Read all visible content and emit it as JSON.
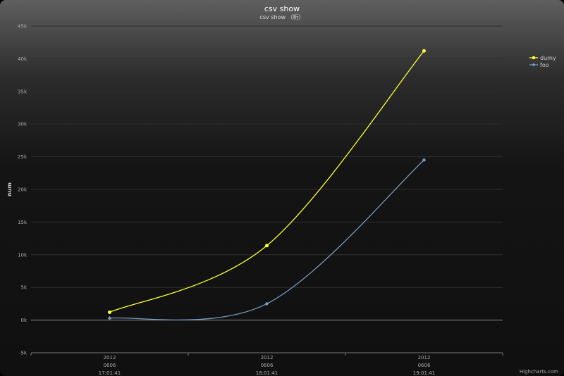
{
  "chart_data": {
    "type": "line",
    "title": "csv show",
    "subtitle": "csv show （桁）",
    "ylabel": "num",
    "xlabel": "",
    "categories": [
      [
        "2012",
        "0606",
        "17:01:41"
      ],
      [
        "2012",
        "0606",
        "18:01:41"
      ],
      [
        "2012",
        "0606",
        "19:01:41"
      ]
    ],
    "ylim": [
      -5000,
      45000
    ],
    "yticks": [
      "-5k",
      "0k",
      "5k",
      "10k",
      "15k",
      "20k",
      "25k",
      "30k",
      "35k",
      "40k",
      "45k"
    ],
    "grid": true,
    "legend_position": "top-right",
    "series": [
      {
        "name": "dumy",
        "values": [
          1200,
          11400,
          41200
        ],
        "color": "#ffff33",
        "marker": "circle"
      },
      {
        "name": "foo",
        "values": [
          300,
          2500,
          24500
        ],
        "color": "#7798bf",
        "marker": "diamond"
      }
    ],
    "credits": "Highcharts.com"
  }
}
